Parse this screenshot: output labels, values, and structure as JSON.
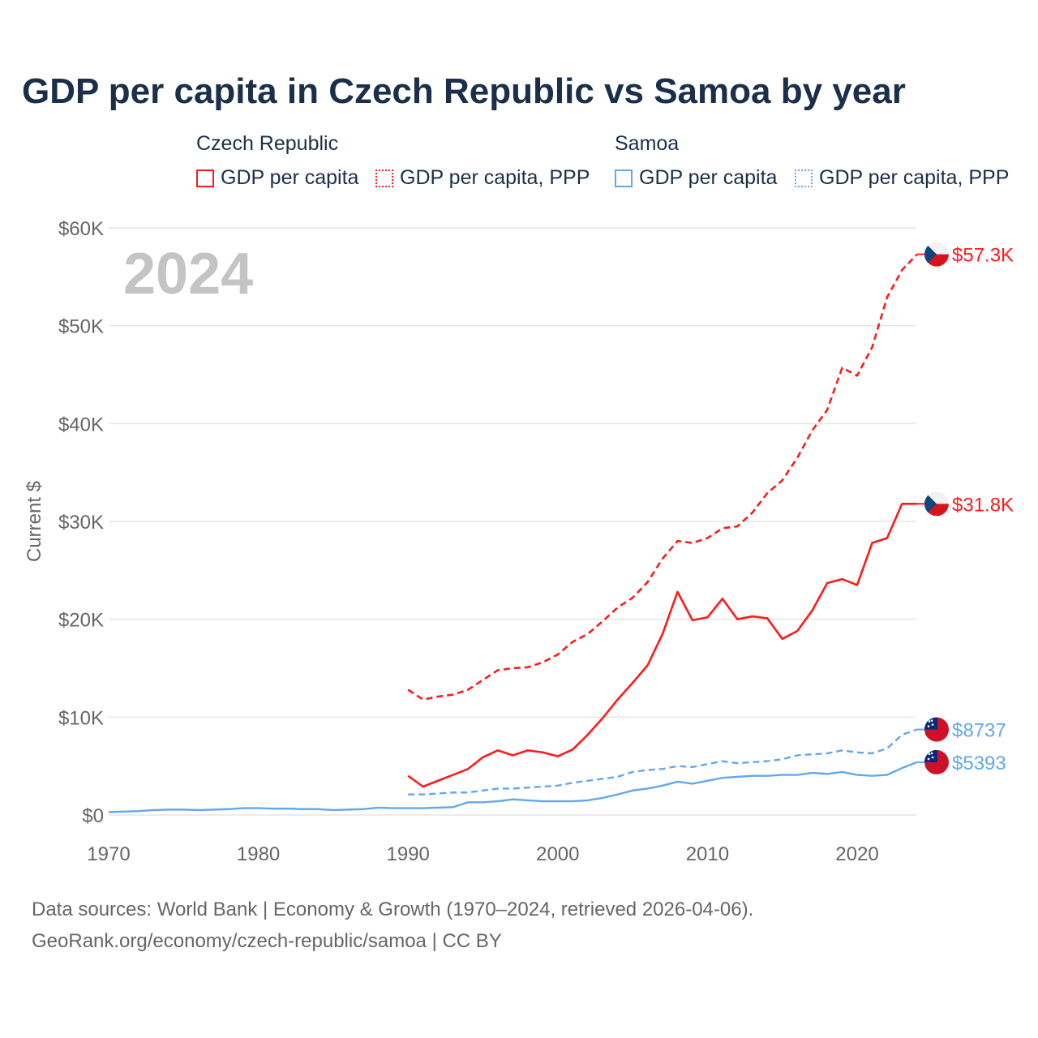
{
  "title": "GDP per capita in Czech Republic vs Samoa by year",
  "legend": {
    "groups": [
      {
        "name": "Czech Republic",
        "items": [
          "GDP per capita",
          "GDP per capita, PPP"
        ]
      },
      {
        "name": "Samoa",
        "items": [
          "GDP per capita",
          "GDP per capita, PPP"
        ]
      }
    ]
  },
  "year_label": "2024",
  "colors": {
    "czech": "#ff1a1a",
    "samoa": "#62a8ec",
    "grid": "#e6e6e6",
    "axis_text": "#666666"
  },
  "source_line1": "Data sources: World Bank | Economy & Growth (1970–2024, retrieved 2026-04-06).",
  "source_line2": "GeoRank.org/economy/czech-republic/samoa | CC BY",
  "chart_data": {
    "type": "line",
    "title": "GDP per capita in Czech Republic vs Samoa by year",
    "xlabel": "",
    "ylabel": "Current $",
    "xlim": [
      1970,
      2024
    ],
    "ylim": [
      0,
      60000
    ],
    "x_ticks": [
      1970,
      1980,
      1990,
      2000,
      2010,
      2020
    ],
    "y_ticks": [
      0,
      10000,
      20000,
      30000,
      40000,
      50000,
      60000
    ],
    "y_tick_labels": [
      "$0",
      "$10K",
      "$20K",
      "$30K",
      "$40K",
      "$50K",
      "$60K"
    ],
    "grid": true,
    "series": [
      {
        "name": "Czech Republic GDP per capita",
        "country": "czech",
        "dashed": false,
        "start": 1990,
        "end_label": "$31.8K",
        "values": [
          4000,
          2900,
          3500,
          4100,
          4700,
          5900,
          6600,
          6100,
          6600,
          6400,
          6000,
          6700,
          8200,
          9900,
          11800,
          13500,
          15300,
          18500,
          22800,
          19900,
          20200,
          22100,
          20000,
          20300,
          20100,
          18000,
          18800,
          20900,
          23700,
          24100,
          23500,
          27800,
          28300,
          31800,
          31800
        ]
      },
      {
        "name": "Czech Republic GDP per capita, PPP",
        "country": "czech",
        "dashed": true,
        "start": 1990,
        "end_label": "$57.3K",
        "values": [
          12800,
          11800,
          12100,
          12300,
          12800,
          13800,
          14800,
          15000,
          15100,
          15600,
          16400,
          17700,
          18500,
          19800,
          21200,
          22200,
          23800,
          26200,
          28000,
          27800,
          28300,
          29300,
          29500,
          30900,
          32900,
          34200,
          36500,
          39300,
          41400,
          45700,
          44900,
          47800,
          52900,
          55700,
          57300
        ]
      },
      {
        "name": "Samoa GDP per capita",
        "country": "samoa",
        "dashed": false,
        "start": 1970,
        "end_label": "$5393",
        "values": [
          300,
          350,
          400,
          500,
          550,
          550,
          500,
          550,
          600,
          700,
          700,
          650,
          650,
          600,
          600,
          500,
          550,
          600,
          750,
          700,
          700,
          700,
          750,
          800,
          1300,
          1300,
          1400,
          1600,
          1500,
          1400,
          1400,
          1400,
          1500,
          1750,
          2100,
          2500,
          2700,
          3000,
          3400,
          3200,
          3500,
          3800,
          3900,
          4000,
          4000,
          4100,
          4100,
          4300,
          4200,
          4400,
          4100,
          4000,
          4100,
          4800,
          5393
        ]
      },
      {
        "name": "Samoa GDP per capita, PPP",
        "country": "samoa",
        "dashed": true,
        "start": 1990,
        "end_label": "$8737",
        "values": [
          2100,
          2100,
          2200,
          2300,
          2300,
          2500,
          2700,
          2700,
          2800,
          2900,
          3000,
          3300,
          3500,
          3700,
          3900,
          4400,
          4600,
          4700,
          5000,
          4900,
          5200,
          5500,
          5300,
          5400,
          5500,
          5700,
          6100,
          6200,
          6300,
          6600,
          6400,
          6300,
          6800,
          8200,
          8737
        ]
      }
    ]
  }
}
